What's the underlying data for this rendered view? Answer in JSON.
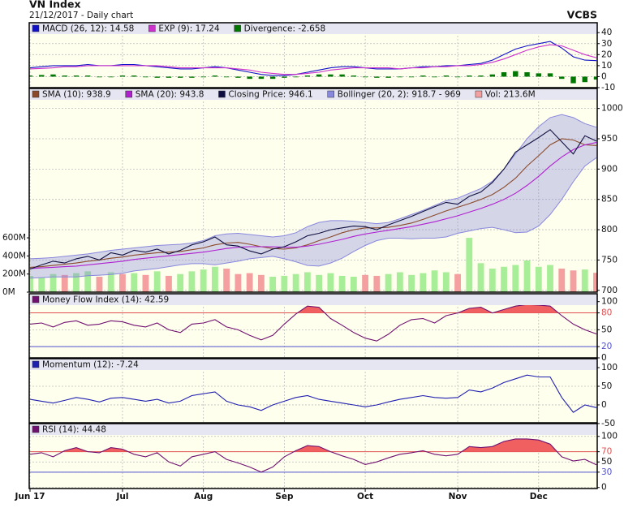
{
  "chart_data": {
    "type": "stock",
    "title": "VN Index",
    "subtitle": "21/12/2017 - Daily chart",
    "source": "VCBS",
    "categories": [
      "Jun 17",
      null,
      null,
      null,
      null,
      null,
      null,
      null,
      "Jul",
      null,
      null,
      null,
      null,
      null,
      null,
      "Aug",
      null,
      null,
      null,
      null,
      null,
      null,
      "Sep",
      null,
      null,
      null,
      null,
      null,
      null,
      "Oct",
      null,
      null,
      null,
      null,
      null,
      null,
      null,
      "Nov",
      null,
      null,
      null,
      null,
      null,
      null,
      "Dec",
      null,
      null,
      null,
      null,
      null
    ],
    "grid": true,
    "panels": [
      {
        "ylim": [
          -10,
          49
        ],
        "yticks": [
          40,
          30,
          20,
          10,
          0,
          -10
        ],
        "series": [
          {
            "name": "MACD (26, 12): 14.58",
            "type": "line",
            "color": "#1010c8",
            "values": [
              8,
              9,
              10,
              10,
              10,
              11,
              10,
              10,
              11,
              11,
              10,
              9,
              8,
              7,
              7,
              8,
              9,
              8,
              6,
              4,
              2,
              1,
              1,
              2,
              4,
              6,
              8,
              9,
              9,
              8,
              7,
              7,
              7,
              8,
              9,
              9,
              10,
              10,
              11,
              12,
              15,
              20,
              25,
              28,
              30,
              32,
              26,
              18,
              15,
              14.58
            ]
          },
          {
            "name": "EXP (9): 17.24",
            "type": "line",
            "color": "#cc33cc",
            "values": [
              7,
              7.5,
              8,
              9,
              9,
              10,
              10,
              10,
              10,
              10,
              10,
              10,
              9,
              8,
              8,
              8,
              8,
              8,
              7,
              6,
              4,
              3,
              2,
              2,
              3,
              4,
              6,
              7,
              8,
              8,
              8,
              8,
              7,
              8,
              8,
              9,
              9,
              10,
              10,
              11,
              13,
              16,
              20,
              24,
              27,
              29,
              28,
              24,
              20,
              17.24
            ]
          },
          {
            "name": "Divergence: -2.658",
            "type": "hist",
            "color": "#007700",
            "values": [
              1,
              1.5,
              2,
              1,
              1,
              1,
              0,
              0,
              1,
              1,
              0,
              -1,
              -1,
              -1,
              -1,
              0,
              1,
              0,
              -1,
              -2,
              -2,
              -2,
              -1,
              0,
              1,
              2,
              2,
              2,
              1,
              0,
              -1,
              -1,
              0,
              0,
              1,
              0,
              1,
              0,
              1,
              1,
              2,
              4,
              5,
              4,
              3,
              3,
              -2,
              -6,
              -5,
              -2.658
            ]
          }
        ]
      },
      {
        "ylim": [
          697,
          1033
        ],
        "yticks": [
          700,
          750,
          800,
          850,
          900,
          950,
          1000
        ],
        "y2lim": [
          0,
          2250
        ],
        "y2ticks": [
          {
            "value": 600,
            "label": "600M"
          },
          {
            "value": 400,
            "label": "400M"
          },
          {
            "value": 200,
            "label": "200M"
          },
          {
            "value": 0,
            "label": "0M"
          }
        ],
        "series": [
          {
            "name": "SMA (10): 938.9",
            "type": "line",
            "color": "#8b4a2a",
            "values": [
              738,
              739,
              741,
              743,
              745,
              748,
              750,
              753,
              755,
              758,
              760,
              762,
              763,
              764,
              767,
              770,
              775,
              778,
              779,
              776,
              772,
              769,
              768,
              770,
              775,
              782,
              788,
              795,
              800,
              803,
              803,
              804,
              807,
              811,
              817,
              824,
              831,
              837,
              843,
              850,
              858,
              870,
              885,
              905,
              922,
              940,
              950,
              948,
              940,
              938.9
            ]
          },
          {
            "name": "SMA (20): 943.8",
            "type": "line",
            "color": "#b020d0",
            "values": [
              736,
              737,
              738,
              739,
              740,
              742,
              744,
              746,
              748,
              751,
              753,
              755,
              757,
              759,
              761,
              763,
              766,
              769,
              771,
              772,
              772,
              772,
              771,
              771,
              773,
              776,
              780,
              784,
              789,
              793,
              796,
              799,
              802,
              805,
              809,
              813,
              818,
              823,
              829,
              835,
              842,
              850,
              860,
              873,
              888,
              905,
              920,
              932,
              940,
              943.8
            ]
          },
          {
            "name": "Closing Price: 946.1",
            "type": "line",
            "color": "#101040",
            "values": [
              735,
              742,
              748,
              745,
              752,
              756,
              750,
              762,
              758,
              766,
              763,
              768,
              760,
              766,
              775,
              780,
              788,
              775,
              773,
              765,
              760,
              768,
              772,
              780,
              790,
              794,
              800,
              803,
              806,
              805,
              800,
              808,
              815,
              822,
              830,
              838,
              845,
              842,
              855,
              862,
              878,
              900,
              928,
              940,
              952,
              965,
              945,
              925,
              955,
              946.1
            ]
          },
          {
            "name": "Bollinger (20, 2): 918.7 - 969",
            "type": "band",
            "color": "#8888dd",
            "upper": [
              752,
              753,
              754,
              756,
              758,
              760,
              763,
              766,
              768,
              770,
              772,
              774,
              775,
              776,
              778,
              782,
              790,
              793,
              794,
              792,
              790,
              788,
              790,
              795,
              805,
              812,
              815,
              815,
              814,
              812,
              810,
              812,
              818,
              825,
              832,
              840,
              848,
              852,
              860,
              868,
              880,
              900,
              925,
              950,
              970,
              985,
              990,
              985,
              975,
              969
            ],
            "lower": [
              720,
              721,
              722,
              722,
              722,
              724,
              725,
              726,
              728,
              732,
              734,
              736,
              739,
              742,
              744,
              744,
              742,
              745,
              748,
              752,
              754,
              756,
              752,
              747,
              741,
              740,
              745,
              753,
              764,
              774,
              782,
              786,
              786,
              785,
              786,
              786,
              788,
              794,
              798,
              802,
              804,
              800,
              795,
              796,
              806,
              825,
              850,
              879,
              905,
              918.7
            ]
          },
          {
            "name": "Vol: 213.6M",
            "type": "volume",
            "axis": "y2",
            "color": "#f4a0a0",
            "up_color": "#a8ee98",
            "down_color": "#f4a0a0",
            "up_down_from": 2,
            "values": [
              180,
              160,
              200,
              190,
              210,
              230,
              170,
              220,
              200,
              210,
              190,
              230,
              180,
              200,
              230,
              250,
              280,
              260,
              200,
              210,
              190,
              170,
              180,
              200,
              220,
              190,
              210,
              180,
              170,
              190,
              180,
              200,
              220,
              190,
              210,
              240,
              220,
              200,
              600,
              320,
              260,
              280,
              300,
              350,
              280,
              300,
              260,
              240,
              250,
              213.6
            ]
          }
        ]
      },
      {
        "ylim": [
          0,
          114
        ],
        "yticks": [
          100,
          80,
          50,
          20,
          0
        ],
        "levels": [
          {
            "value": 80,
            "color": "#e05050",
            "fill_above": true
          },
          {
            "value": 20,
            "color": "#5050d0"
          }
        ],
        "series": [
          {
            "name": "Money Flow Index (14): 42.59",
            "type": "line",
            "color": "#701070",
            "values": [
              60,
              62,
              55,
              63,
              66,
              58,
              60,
              66,
              64,
              58,
              55,
              62,
              50,
              45,
              60,
              62,
              68,
              55,
              50,
              40,
              32,
              40,
              60,
              78,
              92,
              90,
              70,
              58,
              45,
              35,
              30,
              42,
              58,
              68,
              70,
              62,
              75,
              80,
              88,
              90,
              80,
              86,
              92,
              95,
              94,
              92,
              75,
              60,
              50,
              42.59
            ]
          }
        ]
      },
      {
        "ylim": [
          -48,
          124
        ],
        "yticks": [
          100,
          50,
          0,
          -50
        ],
        "series": [
          {
            "name": "Momentum (12): -7.24",
            "type": "line",
            "color": "#2020b0",
            "values": [
              15,
              10,
              5,
              12,
              20,
              15,
              8,
              18,
              20,
              15,
              10,
              15,
              5,
              10,
              25,
              30,
              35,
              10,
              0,
              -5,
              -15,
              0,
              10,
              20,
              25,
              15,
              10,
              5,
              0,
              -5,
              0,
              8,
              15,
              20,
              25,
              20,
              18,
              20,
              40,
              35,
              45,
              60,
              70,
              80,
              75,
              75,
              20,
              -20,
              0,
              -7.24
            ]
          }
        ]
      },
      {
        "ylim": [
          -2,
          125
        ],
        "yticks": [
          100,
          70,
          50,
          30,
          0
        ],
        "levels": [
          {
            "value": 70,
            "color": "#e05050",
            "fill_above": true
          },
          {
            "value": 30,
            "color": "#5050d0"
          }
        ],
        "series": [
          {
            "name": "RSI (14): 44.48",
            "type": "line",
            "color": "#701070",
            "values": [
              65,
              68,
              60,
              72,
              78,
              70,
              68,
              78,
              75,
              65,
              60,
              68,
              50,
              42,
              60,
              65,
              70,
              55,
              48,
              40,
              30,
              40,
              60,
              72,
              82,
              80,
              70,
              62,
              55,
              45,
              50,
              58,
              65,
              68,
              72,
              65,
              62,
              65,
              80,
              78,
              80,
              90,
              95,
              95,
              93,
              85,
              60,
              52,
              55,
              44.48
            ]
          }
        ]
      }
    ]
  }
}
